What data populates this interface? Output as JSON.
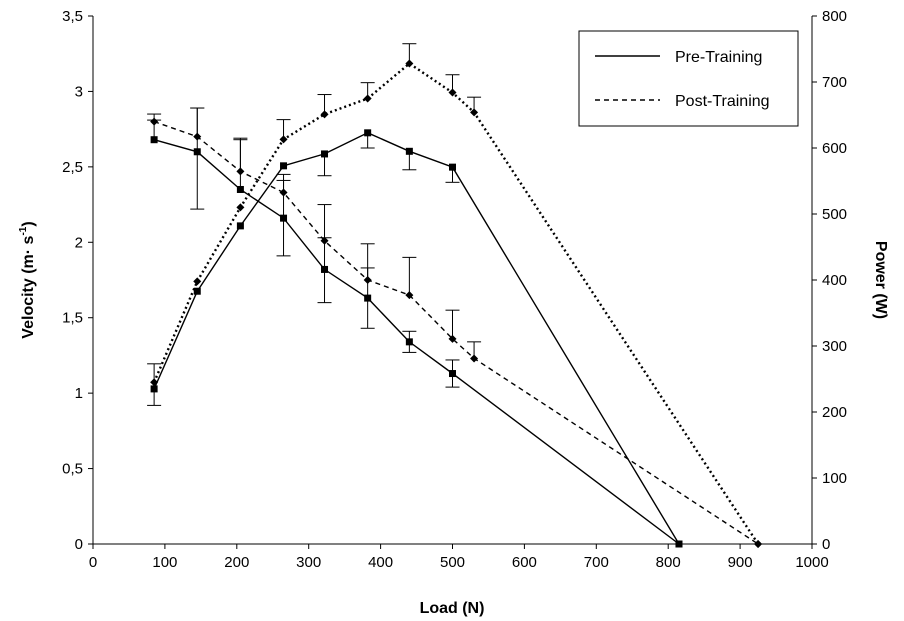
{
  "chart_data": {
    "type": "line",
    "xlabel": "Load (N)",
    "ylabel_left": {
      "main": "Velocity (m· s",
      "sup": "-1",
      "end": ")"
    },
    "ylabel_right": "Power (W)",
    "xlim": [
      0,
      1000
    ],
    "ylim_left": [
      0,
      3.5
    ],
    "ylim_right": [
      0,
      800
    ],
    "x_ticks": [
      "0",
      "100",
      "200",
      "300",
      "400",
      "500",
      "600",
      "700",
      "800",
      "900",
      "1000"
    ],
    "y_left_ticks": [
      "0",
      "0,5",
      "1",
      "1,5",
      "2",
      "2,5",
      "3",
      "3,5"
    ],
    "y_right_ticks": [
      "0",
      "100",
      "200",
      "300",
      "400",
      "500",
      "600",
      "700",
      "800"
    ],
    "legend": [
      {
        "label": "Pre-Training",
        "style": "solid"
      },
      {
        "label": "Post-Training",
        "style": "dashed"
      }
    ],
    "legend_position": "top-right",
    "series": [
      {
        "name": "Pre-Training",
        "quantity": "velocity",
        "axis": "left",
        "style": "solid",
        "marker": "square",
        "x": [
          85,
          145,
          205,
          265,
          322,
          382,
          440,
          500,
          815
        ],
        "y": [
          2.68,
          2.6,
          2.35,
          2.16,
          1.82,
          1.63,
          1.34,
          1.13,
          0
        ],
        "error_up": [
          0.13,
          0.29,
          0.33,
          0.25,
          0.21,
          0.2,
          0.07,
          0.09,
          0
        ],
        "error_down": [
          0,
          0.38,
          0,
          0.25,
          0.22,
          0.2,
          0.07,
          0.09,
          0
        ]
      },
      {
        "name": "Pre-Training",
        "quantity": "power",
        "axis": "right",
        "style": "solid",
        "marker": "square",
        "x": [
          85,
          145,
          205,
          265,
          322,
          382,
          440,
          500,
          815
        ],
        "y": [
          235,
          383,
          482,
          573,
          591,
          623,
          595,
          571,
          0
        ],
        "error_up": [
          0,
          0,
          0,
          0,
          0,
          0,
          0,
          0,
          0
        ],
        "error_down": [
          25,
          0,
          0,
          0,
          33,
          23,
          28,
          23,
          0
        ]
      },
      {
        "name": "Post-Training",
        "quantity": "velocity",
        "axis": "left",
        "style": "dashed",
        "marker": "diamond",
        "x": [
          85,
          145,
          205,
          265,
          322,
          382,
          440,
          500,
          530,
          925
        ],
        "y": [
          2.8,
          2.7,
          2.47,
          2.33,
          2.01,
          1.75,
          1.65,
          1.36,
          1.23,
          0
        ],
        "error_up": [
          0.05,
          0.19,
          0.22,
          0.12,
          0.24,
          0.24,
          0.25,
          0.19,
          0.11,
          0
        ],
        "error_down": [
          0,
          0,
          0,
          0,
          0,
          0,
          0,
          0,
          0,
          0
        ]
      },
      {
        "name": "Post-Training",
        "quantity": "power",
        "axis": "right",
        "style": "dotted",
        "marker": "diamond",
        "x": [
          85,
          145,
          205,
          265,
          322,
          382,
          440,
          500,
          530,
          925
        ],
        "y": [
          245,
          398,
          510,
          613,
          651,
          675,
          728,
          684,
          654,
          0
        ],
        "error_up": [
          28,
          0,
          0,
          30,
          30,
          24,
          30,
          27,
          23,
          0
        ],
        "error_down": [
          0,
          0,
          0,
          0,
          0,
          0,
          0,
          0,
          0,
          0
        ]
      }
    ]
  }
}
